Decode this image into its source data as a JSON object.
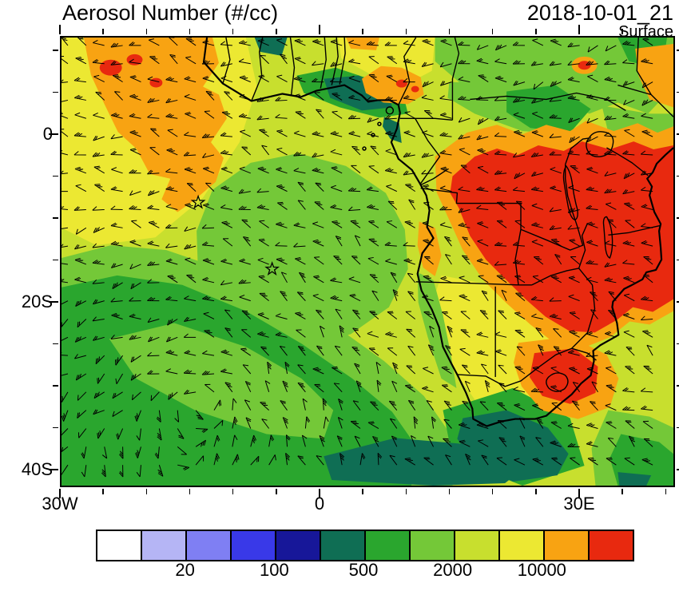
{
  "header": {
    "title": "Aerosol Number (#/cc)",
    "datetime": "2018-10-01_21",
    "level": "Surface"
  },
  "axes": {
    "y_tick_labels": [
      "0",
      "20S",
      "40S"
    ],
    "x_tick_labels": [
      "30W",
      "0",
      "30E"
    ]
  },
  "chart_data": {
    "type": "heatmap",
    "title": "Aerosol Number (#/cc)",
    "timestamp": "2018-10-01_21",
    "level": "Surface",
    "region": {
      "west": "30W",
      "east": "~42E",
      "south": "~42S",
      "north": "~12N"
    },
    "x_tick_labels": [
      "30W",
      "0",
      "30E"
    ],
    "y_tick_labels": [
      "0",
      "20S",
      "40S"
    ],
    "colorbar": {
      "labels": [
        "20",
        "100",
        "500",
        "2000",
        "10000"
      ],
      "n_cells": 12,
      "colors": [
        "#ffffff",
        "#b5b5f5",
        "#7f7ff3",
        "#3939e8",
        "#171799",
        "#0f6e54",
        "#2aa62e",
        "#74c838",
        "#c8df2e",
        "#ece832",
        "#f8a312",
        "#e8290f"
      ]
    },
    "overlays": {
      "wind_barbs": true,
      "coastlines": true,
      "country_borders": true,
      "lakes": true,
      "star_markers": 2
    },
    "field_summary": [
      {
        "area": "central and southern Africa (DRC, Zambia, Angola, Zimbabwe, Mozambique)",
        "value": "> 20000 #/cc (red maximum), ringed by 10000-20000 orange"
      },
      {
        "area": "northwest corner band near 0-10N, 10-25W",
        "value": "10000-20000 #/cc orange band with >20000 red specks"
      },
      {
        "area": "Gulf of Guinea coast",
        "value": "mixed 200-20000 #/cc (dark green/teal patches next to orange)"
      },
      {
        "area": "south-central and southwest Atlantic",
        "value": "500-2000 #/cc greens with 200-500 teal band near 40S"
      },
      {
        "area": "background ocean",
        "value": "2000-10000 #/cc yellow-green to yellow"
      }
    ]
  }
}
